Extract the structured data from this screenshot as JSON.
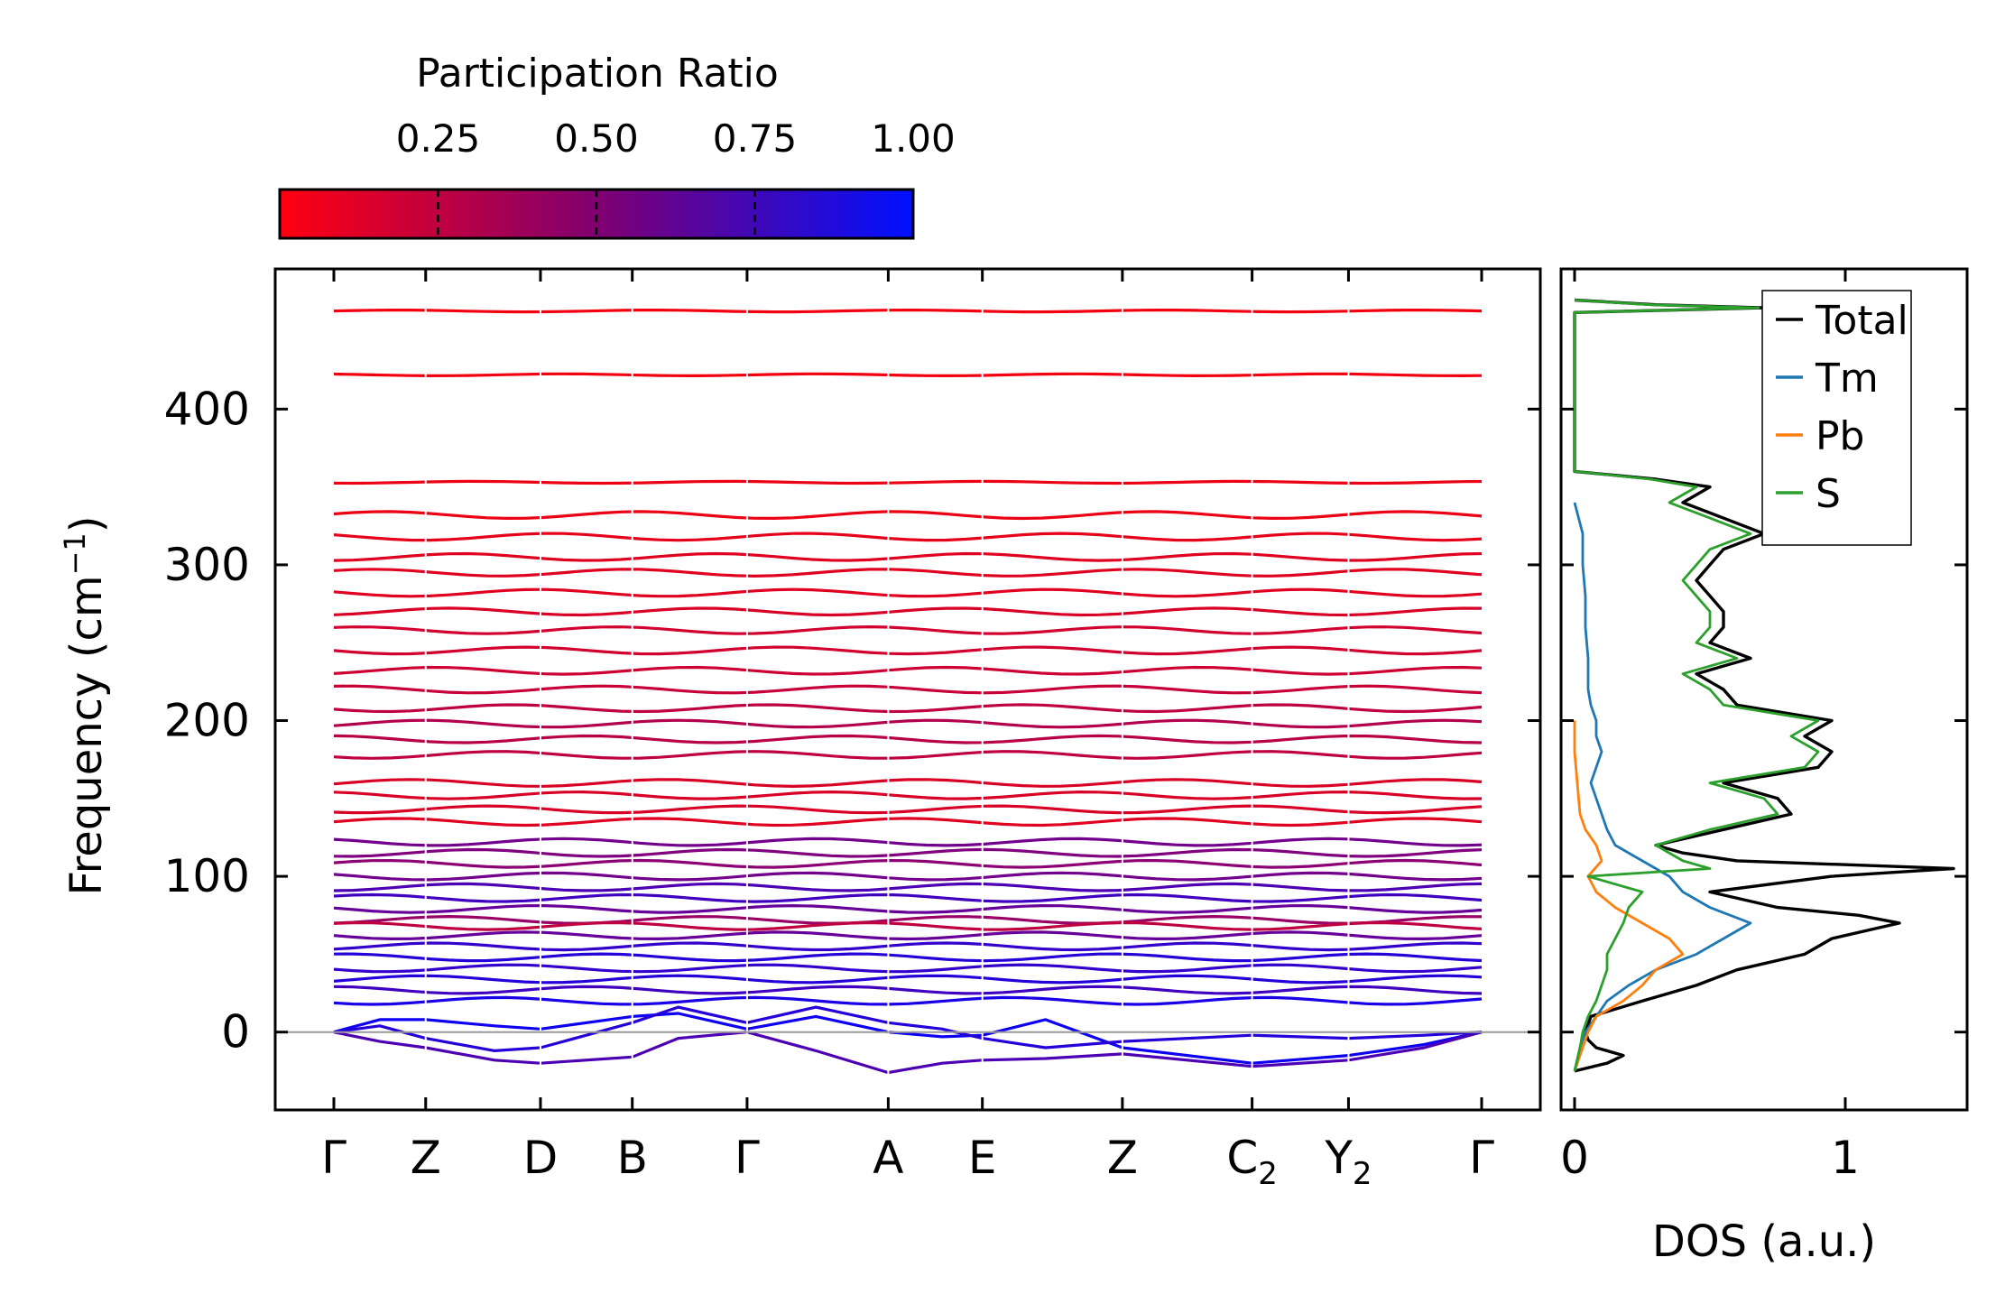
{
  "chart_data": [
    {
      "type": "line",
      "name": "phonon-band-structure",
      "ylabel": "Frequency (cm",
      "ylabel_sup": "−1",
      "ylabel_close": ")",
      "ylim": [
        -50,
        490
      ],
      "yticks": [
        "0",
        "100",
        "200",
        "300",
        "400"
      ],
      "path_labels": [
        {
          "main": "Γ",
          "sub": ""
        },
        {
          "main": "Z",
          "sub": ""
        },
        {
          "main": "D",
          "sub": ""
        },
        {
          "main": "B",
          "sub": ""
        },
        {
          "main": "Γ",
          "sub": ""
        },
        {
          "main": "A",
          "sub": ""
        },
        {
          "main": "E",
          "sub": ""
        },
        {
          "main": "Z",
          "sub": ""
        },
        {
          "main": "C",
          "sub": "2"
        },
        {
          "main": "Y",
          "sub": "2"
        },
        {
          "main": "Γ",
          "sub": ""
        }
      ],
      "path_positions": [
        0,
        0.08,
        0.18,
        0.26,
        0.36,
        0.483,
        0.565,
        0.687,
        0.8,
        0.884,
        1.0
      ],
      "zero_line": 0,
      "flat_bands": [
        {
          "freq": 463,
          "pr": 0.05
        },
        {
          "freq": 422,
          "pr": 0.05
        },
        {
          "freq": 353,
          "pr": 0.08
        },
        {
          "freq": 332,
          "pr": 0.08
        },
        {
          "freq": 318,
          "pr": 0.1
        },
        {
          "freq": 305,
          "pr": 0.12
        },
        {
          "freq": 295,
          "pr": 0.12
        },
        {
          "freq": 282,
          "pr": 0.12
        },
        {
          "freq": 270,
          "pr": 0.15
        },
        {
          "freq": 258,
          "pr": 0.18
        },
        {
          "freq": 245,
          "pr": 0.18
        },
        {
          "freq": 232,
          "pr": 0.2
        },
        {
          "freq": 220,
          "pr": 0.22
        },
        {
          "freq": 208,
          "pr": 0.25
        },
        {
          "freq": 198,
          "pr": 0.3
        },
        {
          "freq": 188,
          "pr": 0.28
        },
        {
          "freq": 178,
          "pr": 0.25
        },
        {
          "freq": 160,
          "pr": 0.15
        },
        {
          "freq": 152,
          "pr": 0.15
        },
        {
          "freq": 143,
          "pr": 0.15
        },
        {
          "freq": 135,
          "pr": 0.12
        },
        {
          "freq": 122,
          "pr": 0.55
        },
        {
          "freq": 115,
          "pr": 0.5
        },
        {
          "freq": 108,
          "pr": 0.45
        },
        {
          "freq": 100,
          "pr": 0.55
        },
        {
          "freq": 93,
          "pr": 0.7
        },
        {
          "freq": 86,
          "pr": 0.75
        },
        {
          "freq": 79,
          "pr": 0.6
        },
        {
          "freq": 72,
          "pr": 0.4
        },
        {
          "freq": 68,
          "pr": 0.25
        },
        {
          "freq": 62,
          "pr": 0.6
        },
        {
          "freq": 55,
          "pr": 0.8
        },
        {
          "freq": 48,
          "pr": 0.85
        },
        {
          "freq": 41,
          "pr": 0.8
        },
        {
          "freq": 34,
          "pr": 0.85
        },
        {
          "freq": 27,
          "pr": 0.75
        },
        {
          "freq": 20,
          "pr": 0.9
        }
      ],
      "acoustic_bands": [
        {
          "pr": 0.95,
          "points": [
            [
              0,
              0
            ],
            [
              0.04,
              8
            ],
            [
              0.08,
              8
            ],
            [
              0.14,
              4
            ],
            [
              0.18,
              2
            ],
            [
              0.26,
              10
            ],
            [
              0.3,
              12
            ],
            [
              0.36,
              2
            ],
            [
              0.42,
              10
            ],
            [
              0.483,
              0
            ],
            [
              0.53,
              -3
            ],
            [
              0.565,
              -2
            ],
            [
              0.62,
              8
            ],
            [
              0.687,
              -10
            ],
            [
              0.8,
              -20
            ],
            [
              0.884,
              -15
            ],
            [
              0.95,
              -8
            ],
            [
              1.0,
              0
            ]
          ]
        },
        {
          "pr": 0.7,
          "points": [
            [
              0,
              0
            ],
            [
              0.04,
              -6
            ],
            [
              0.08,
              -10
            ],
            [
              0.14,
              -18
            ],
            [
              0.18,
              -20
            ],
            [
              0.26,
              -16
            ],
            [
              0.3,
              -4
            ],
            [
              0.36,
              0
            ],
            [
              0.42,
              -12
            ],
            [
              0.483,
              -26
            ],
            [
              0.53,
              -20
            ],
            [
              0.565,
              -18
            ],
            [
              0.62,
              -17
            ],
            [
              0.687,
              -14
            ],
            [
              0.8,
              -22
            ],
            [
              0.884,
              -18
            ],
            [
              0.95,
              -10
            ],
            [
              1.0,
              0
            ]
          ]
        },
        {
          "pr": 0.85,
          "points": [
            [
              0,
              0
            ],
            [
              0.04,
              4
            ],
            [
              0.08,
              -4
            ],
            [
              0.14,
              -12
            ],
            [
              0.18,
              -10
            ],
            [
              0.26,
              6
            ],
            [
              0.3,
              16
            ],
            [
              0.36,
              6
            ],
            [
              0.42,
              16
            ],
            [
              0.483,
              6
            ],
            [
              0.53,
              2
            ],
            [
              0.565,
              -4
            ],
            [
              0.62,
              -10
            ],
            [
              0.687,
              -6
            ],
            [
              0.8,
              -2
            ],
            [
              0.884,
              -4
            ],
            [
              0.95,
              -2
            ],
            [
              1.0,
              0
            ]
          ]
        }
      ]
    },
    {
      "type": "line",
      "name": "density-of-states",
      "xlabel": "DOS (a.u.)",
      "xticks": [
        "0",
        "1"
      ],
      "xlim": [
        -0.05,
        1.45
      ],
      "legend_location": "upper-right",
      "series": [
        {
          "name": "Total",
          "color": "#000000",
          "freq": [
            -25,
            -20,
            -15,
            -10,
            -5,
            0,
            10,
            20,
            30,
            40,
            50,
            60,
            70,
            75,
            80,
            90,
            100,
            105,
            110,
            115,
            120,
            130,
            140,
            150,
            160,
            170,
            180,
            190,
            200,
            210,
            220,
            230,
            240,
            250,
            260,
            270,
            280,
            290,
            300,
            310,
            320,
            330,
            340,
            350,
            355,
            360,
            400,
            440,
            462,
            465,
            467,
            470
          ],
          "dos": [
            0,
            0.12,
            0.18,
            0.08,
            0.05,
            0.04,
            0.06,
            0.25,
            0.45,
            0.6,
            0.85,
            0.95,
            1.2,
            1.05,
            0.75,
            0.5,
            0.95,
            1.4,
            0.6,
            0.4,
            0.3,
            0.55,
            0.8,
            0.75,
            0.55,
            0.9,
            0.95,
            0.85,
            0.95,
            0.6,
            0.55,
            0.45,
            0.65,
            0.5,
            0.55,
            0.55,
            0.5,
            0.45,
            0.5,
            0.55,
            0.7,
            0.55,
            0.4,
            0.5,
            0.3,
            0.0,
            0.0,
            0.0,
            0.0,
            0.7,
            0.3,
            0.0
          ]
        },
        {
          "name": "Tm",
          "color": "#1f77b4",
          "freq": [
            -25,
            -10,
            0,
            10,
            20,
            30,
            40,
            50,
            60,
            70,
            80,
            90,
            100,
            110,
            120,
            130,
            140,
            150,
            160,
            170,
            180,
            190,
            200,
            210,
            220,
            240,
            260,
            280,
            300,
            320,
            340
          ],
          "dos": [
            0,
            0.02,
            0.04,
            0.08,
            0.12,
            0.2,
            0.3,
            0.45,
            0.55,
            0.65,
            0.5,
            0.4,
            0.35,
            0.25,
            0.15,
            0.12,
            0.1,
            0.08,
            0.06,
            0.08,
            0.1,
            0.08,
            0.08,
            0.06,
            0.05,
            0.05,
            0.04,
            0.04,
            0.03,
            0.03,
            0.0
          ]
        },
        {
          "name": "Pb",
          "color": "#ff7f0e",
          "freq": [
            -25,
            -10,
            0,
            10,
            20,
            30,
            40,
            50,
            60,
            70,
            80,
            90,
            100,
            110,
            120,
            130,
            140,
            160,
            180,
            200
          ],
          "dos": [
            0,
            0.03,
            0.05,
            0.08,
            0.18,
            0.25,
            0.3,
            0.4,
            0.35,
            0.25,
            0.15,
            0.08,
            0.05,
            0.1,
            0.08,
            0.04,
            0.02,
            0.01,
            0.0,
            0.0
          ]
        },
        {
          "name": "S",
          "color": "#2ca02c",
          "freq": [
            -25,
            -10,
            0,
            10,
            20,
            30,
            40,
            50,
            60,
            70,
            80,
            90,
            100,
            105,
            110,
            120,
            130,
            140,
            150,
            160,
            170,
            180,
            190,
            200,
            210,
            220,
            230,
            240,
            250,
            260,
            270,
            280,
            290,
            300,
            310,
            320,
            330,
            340,
            350,
            355,
            360,
            400,
            440,
            462,
            465,
            467,
            470
          ],
          "dos": [
            0,
            0.02,
            0.03,
            0.05,
            0.08,
            0.1,
            0.12,
            0.12,
            0.15,
            0.18,
            0.2,
            0.25,
            0.05,
            0.5,
            0.4,
            0.3,
            0.5,
            0.75,
            0.7,
            0.5,
            0.85,
            0.9,
            0.8,
            0.9,
            0.55,
            0.5,
            0.4,
            0.6,
            0.45,
            0.5,
            0.5,
            0.45,
            0.4,
            0.45,
            0.5,
            0.65,
            0.5,
            0.35,
            0.45,
            0.28,
            0.0,
            0.0,
            0.0,
            0.0,
            0.68,
            0.28,
            0.0
          ]
        }
      ]
    },
    {
      "type": "colorbar",
      "name": "participation-ratio-colorbar",
      "title": "Participation Ratio",
      "range": [
        0,
        1
      ],
      "ticks": [
        0.25,
        0.5,
        0.75,
        1.0
      ],
      "tick_labels": [
        "0.25",
        "0.50",
        "0.75",
        "1.00"
      ],
      "low_color": "#ff0000",
      "high_color": "#0000ff"
    }
  ]
}
